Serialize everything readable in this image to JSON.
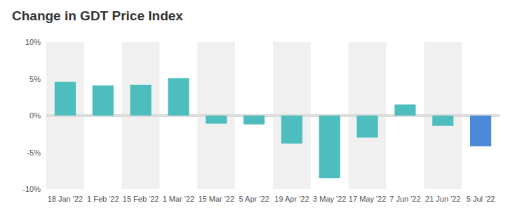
{
  "chart_data": {
    "type": "bar",
    "title": "Change in GDT Price Index",
    "categories": [
      "18 Jan '22",
      "1 Feb '22",
      "15 Feb '22",
      "1 Mar '22",
      "15 Mar '22",
      "5 Apr '22",
      "19 Apr '22",
      "3 May '22",
      "17 May '22",
      "7 Jun '22",
      "21 Jun '22",
      "5 Jul '22"
    ],
    "values": [
      4.6,
      4.1,
      4.2,
      5.1,
      -1.1,
      -1.2,
      -3.8,
      -8.5,
      -3.0,
      1.5,
      -1.4,
      -4.2
    ],
    "colors": [
      "#4dbdbd",
      "#4dbdbd",
      "#4dbdbd",
      "#4dbdbd",
      "#4dbdbd",
      "#4dbdbd",
      "#4dbdbd",
      "#4dbdbd",
      "#4dbdbd",
      "#4dbdbd",
      "#4dbdbd",
      "#4a8ad8"
    ],
    "ylim": [
      -10,
      10
    ],
    "yticks": [
      {
        "value": -10,
        "label": "-10%"
      },
      {
        "value": -5,
        "label": "-5%"
      },
      {
        "value": 0,
        "label": "0%"
      },
      {
        "value": 5,
        "label": "5%"
      },
      {
        "value": 10,
        "label": "10%"
      }
    ],
    "grid": false
  }
}
